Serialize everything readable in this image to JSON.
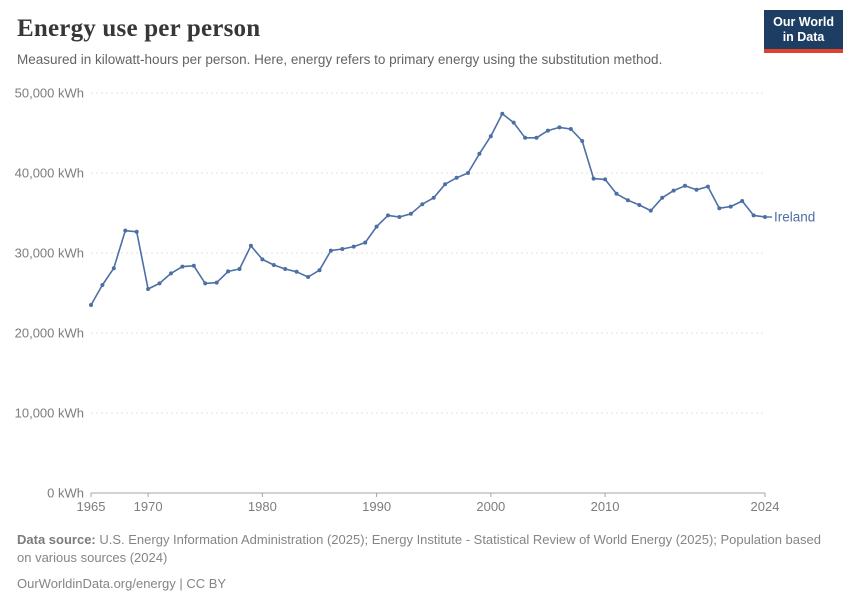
{
  "header": {
    "title": "Energy use per person",
    "subtitle": "Measured in kilowatt-hours per person. Here, energy refers to primary energy using the substitution method."
  },
  "logo": {
    "line1": "Our World",
    "line2": "in Data",
    "bg_color": "#1d3d63",
    "bar_color": "#e0412d"
  },
  "chart_data": {
    "type": "line",
    "title": "Energy use per person",
    "unit": "kWh",
    "xlabel": "",
    "ylabel": "kWh",
    "xlim": [
      1965,
      2024
    ],
    "ylim": [
      0,
      50000
    ],
    "grid": "horizontal-dashed",
    "legend_position": "end-of-line-label",
    "x_ticks": [
      1965,
      1970,
      1980,
      1990,
      2000,
      2010,
      2024
    ],
    "y_ticks": [
      {
        "value": 0,
        "label": "0 kWh"
      },
      {
        "value": 10000,
        "label": "10,000 kWh"
      },
      {
        "value": 20000,
        "label": "20,000 kWh"
      },
      {
        "value": 30000,
        "label": "30,000 kWh"
      },
      {
        "value": 40000,
        "label": "40,000 kWh"
      },
      {
        "value": 50000,
        "label": "50,000 kWh"
      }
    ],
    "series": [
      {
        "name": "Ireland",
        "color": "#4c6fa5",
        "x": [
          1965,
          1966,
          1967,
          1968,
          1969,
          1970,
          1971,
          1972,
          1973,
          1974,
          1975,
          1976,
          1977,
          1978,
          1979,
          1980,
          1981,
          1982,
          1983,
          1984,
          1985,
          1986,
          1987,
          1988,
          1989,
          1990,
          1991,
          1992,
          1993,
          1994,
          1995,
          1996,
          1997,
          1998,
          1999,
          2000,
          2001,
          2002,
          2003,
          2004,
          2005,
          2006,
          2007,
          2008,
          2009,
          2010,
          2011,
          2012,
          2013,
          2014,
          2015,
          2016,
          2017,
          2018,
          2019,
          2020,
          2021,
          2022,
          2023,
          2024
        ],
        "values": [
          23500,
          26000,
          28100,
          32800,
          32650,
          25500,
          26200,
          27450,
          28300,
          28400,
          26200,
          26300,
          27700,
          28000,
          30900,
          29200,
          28500,
          28000,
          27650,
          27000,
          27850,
          30300,
          30500,
          30800,
          31300,
          33300,
          34700,
          34500,
          34900,
          36100,
          36900,
          38600,
          39400,
          40000,
          42400,
          44600,
          47400,
          46300,
          44400,
          44400,
          45300,
          45700,
          45500,
          44000,
          39300,
          39200,
          37400,
          36600,
          36000,
          35300,
          36900,
          37800,
          38400,
          37900,
          38300,
          35600,
          35800,
          36500,
          34700,
          34500
        ]
      }
    ],
    "style": {
      "gridline_color": "#e2e2e2",
      "axis_color": "#a5a5a5",
      "tick_label_color": "#7d7d7d"
    }
  },
  "footer": {
    "source_label": "Data source:",
    "source_text": " U.S. Energy Information Administration (2025); Energy Institute - Statistical Review of World Energy (2025); Population based on various sources (2024)",
    "link_text": "OurWorldinData.org/energy | CC BY"
  }
}
